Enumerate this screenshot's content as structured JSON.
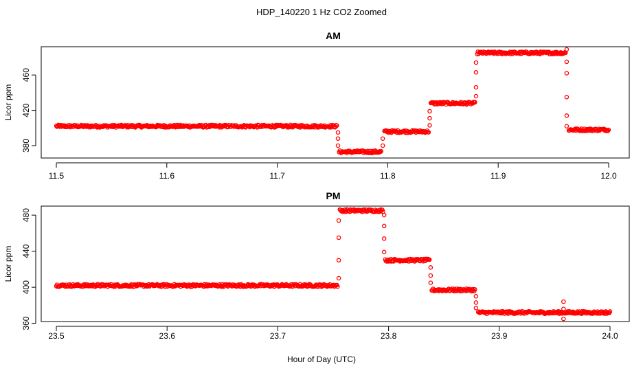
{
  "title": "HDP_140220  1 Hz CO2 Zoomed",
  "xlabel": "Hour of Day (UTC)",
  "point_color": "#ff0000",
  "chart_data": [
    {
      "type": "scatter",
      "title": "AM",
      "ylabel": "Licor ppm",
      "xlim": [
        11.5,
        12.0
      ],
      "ylim": [
        366,
        492
      ],
      "xticks": [
        11.5,
        11.6,
        11.7,
        11.8,
        11.9,
        12.0
      ],
      "xtick_labels": [
        "11.5",
        "11.6",
        "11.7",
        "11.8",
        "11.9",
        "12.0"
      ],
      "yticks": [
        380,
        420,
        460
      ],
      "ytick_labels": [
        "380",
        "420",
        "460"
      ],
      "plateaus": [
        {
          "x_start": 11.5,
          "x_end": 11.754,
          "y": 402
        },
        {
          "x_start": 11.756,
          "x_end": 11.794,
          "y": 373
        },
        {
          "x_start": 11.797,
          "x_end": 11.837,
          "y": 396
        },
        {
          "x_start": 11.839,
          "x_end": 11.879,
          "y": 428
        },
        {
          "x_start": 11.881,
          "x_end": 11.961,
          "y": 485
        },
        {
          "x_start": 11.964,
          "x_end": 12.0,
          "y": 398
        }
      ],
      "transitions": [
        {
          "x": 11.755,
          "y": [
            395,
            388,
            380
          ]
        },
        {
          "x": 11.7955,
          "y": [
            380,
            388
          ]
        },
        {
          "x": 11.838,
          "y": [
            403,
            411,
            419
          ]
        },
        {
          "x": 11.88,
          "y": [
            436,
            446,
            463,
            474
          ]
        },
        {
          "x": 11.962,
          "y": [
            489,
            475,
            462,
            435,
            414,
            402
          ]
        }
      ]
    },
    {
      "type": "scatter",
      "title": "PM",
      "ylabel": "Licor ppm",
      "xlim": [
        23.5,
        24.0
      ],
      "ylim": [
        362,
        490
      ],
      "xticks": [
        23.5,
        23.6,
        23.7,
        23.8,
        23.9,
        24.0
      ],
      "xtick_labels": [
        "23.5",
        "23.6",
        "23.7",
        "23.8",
        "23.9",
        "24.0"
      ],
      "yticks": [
        360,
        400,
        440,
        480
      ],
      "ytick_labels": [
        "360",
        "400",
        "440",
        "480"
      ],
      "plateaus": [
        {
          "x_start": 23.5,
          "x_end": 23.754,
          "y": 402
        },
        {
          "x_start": 23.756,
          "x_end": 23.795,
          "y": 485
        },
        {
          "x_start": 23.797,
          "x_end": 23.837,
          "y": 430
        },
        {
          "x_start": 23.839,
          "x_end": 23.878,
          "y": 397
        },
        {
          "x_start": 23.881,
          "x_end": 24.0,
          "y": 372
        }
      ],
      "transitions": [
        {
          "x": 23.755,
          "y": [
            410,
            430,
            455,
            474
          ]
        },
        {
          "x": 23.796,
          "y": [
            480,
            468,
            454,
            439
          ]
        },
        {
          "x": 23.838,
          "y": [
            422,
            413,
            405
          ]
        },
        {
          "x": 23.879,
          "y": [
            390,
            383,
            377
          ]
        },
        {
          "x": 23.958,
          "y": [
            384,
            376,
            365
          ]
        }
      ]
    }
  ]
}
